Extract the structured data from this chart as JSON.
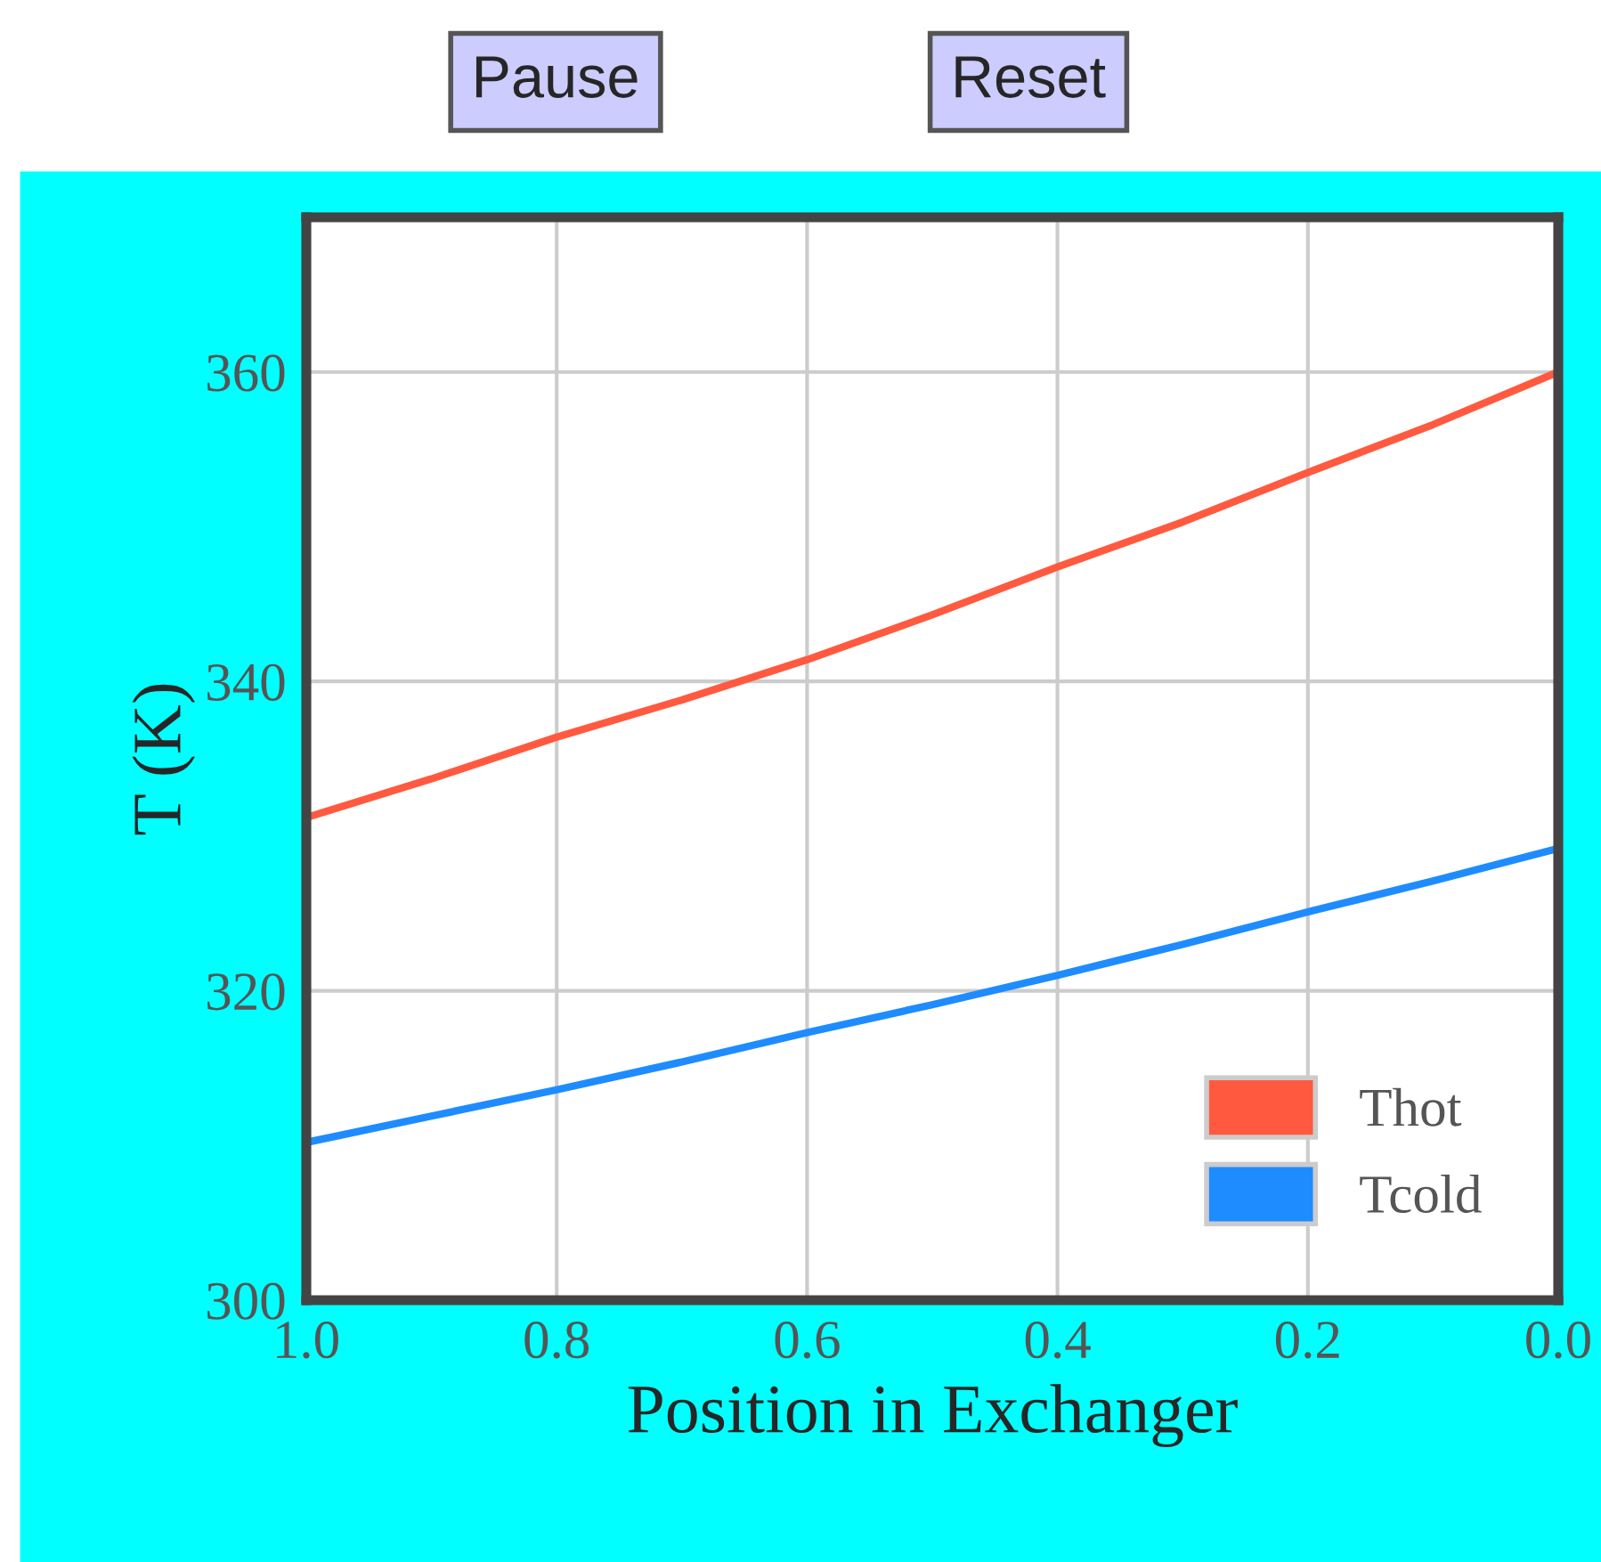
{
  "chart_data": {
    "type": "line",
    "xlabel": "Position in Exchanger",
    "ylabel": "T (K)",
    "x": [
      1.0,
      0.9,
      0.8,
      0.7,
      0.6,
      0.5,
      0.4,
      0.3,
      0.2,
      0.1,
      0.0
    ],
    "series": [
      {
        "name": "Thot",
        "color": "#ff5a40",
        "values": [
          331.2,
          333.7,
          336.4,
          338.8,
          341.4,
          344.3,
          347.4,
          350.3,
          353.5,
          356.6,
          360.0
        ]
      },
      {
        "name": "Tcold",
        "color": "#1e8cff",
        "values": [
          310.2,
          311.9,
          313.6,
          315.4,
          317.3,
          319.1,
          321.0,
          323.0,
          325.1,
          327.1,
          329.2
        ]
      }
    ],
    "xlim": [
      1.0,
      0.0
    ],
    "xticks": [
      {
        "value": 1.0,
        "label": "1.0"
      },
      0.8,
      0.6,
      0.4,
      0.2,
      {
        "value": 0.0,
        "label": "0.0"
      }
    ],
    "ylim": [
      300,
      370
    ],
    "yticks": [
      300,
      320,
      340,
      360
    ],
    "grid": true,
    "legend": "bottom right",
    "marker": "none",
    "line_style": "solid",
    "annotations": [
      "Pause",
      "Reset"
    ]
  }
}
